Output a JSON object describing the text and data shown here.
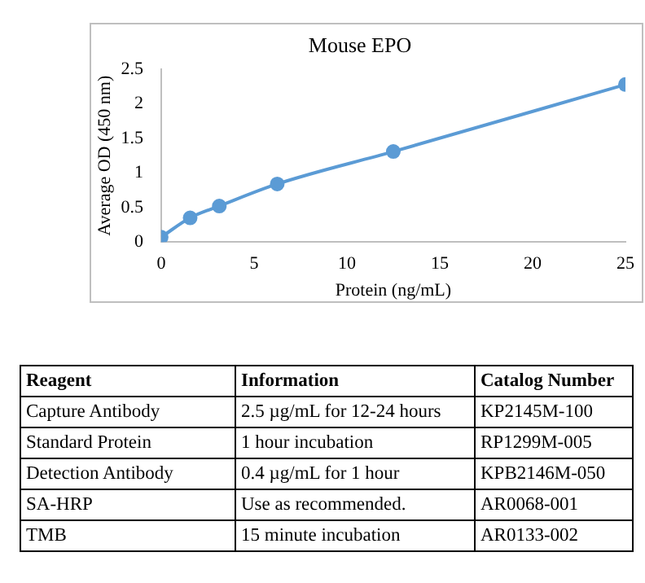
{
  "chart_data": [
    {
      "type": "line",
      "title": "Mouse EPO",
      "xlabel": "Protein (ng/mL)",
      "ylabel": "Average OD (450 nm)",
      "x": [
        0,
        1.56,
        3.13,
        6.25,
        12.5,
        25
      ],
      "series": [
        {
          "color": "#5b9bd5",
          "values": [
            0.07,
            0.35,
            0.52,
            0.84,
            1.31,
            2.28
          ]
        }
      ],
      "xlim": [
        0,
        25
      ],
      "xticks": [
        0,
        5,
        10,
        15,
        20,
        25
      ],
      "ylim": [
        0,
        2.5
      ],
      "yticks": [
        0,
        0.5,
        1,
        1.5,
        2,
        2.5
      ],
      "grid": false,
      "legend": false,
      "marker": "circle",
      "line_style": "solid"
    },
    {
      "type": "other",
      "annotations": [
        "Reagent",
        "Information",
        "Catalog Number",
        "Capture Antibody",
        "2.5 µg/mL for 12-24 hours",
        "KP2145M-100",
        "Standard Protein",
        "1 hour incubation",
        "RP1299M-005",
        "Detection Antibody",
        "0.4 µg/mL for 1 hour",
        "KPB2146M-050",
        "SA-HRP",
        "Use as recommended.",
        "AR0068-001",
        "TMB",
        "15 minute incubation",
        "AR0133-002"
      ]
    }
  ]
}
